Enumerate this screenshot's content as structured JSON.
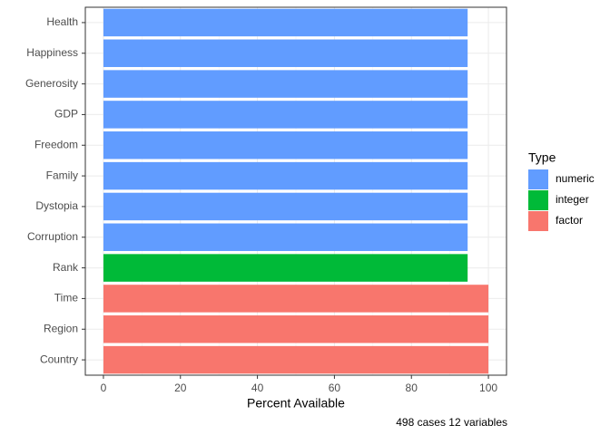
{
  "chart_data": {
    "type": "bar",
    "orientation": "horizontal",
    "categories": [
      "Health",
      "Happiness",
      "Generosity",
      "GDP",
      "Freedom",
      "Family",
      "Dystopia",
      "Corruption",
      "Rank",
      "Time",
      "Region",
      "Country"
    ],
    "series": [
      {
        "name": "numeric",
        "color": "#619cff",
        "values": [
          94.6,
          94.6,
          94.6,
          94.6,
          94.6,
          94.6,
          94.6,
          94.6,
          null,
          null,
          null,
          null
        ]
      },
      {
        "name": "integer",
        "color": "#00ba38",
        "values": [
          null,
          null,
          null,
          null,
          null,
          null,
          null,
          null,
          94.6,
          null,
          null,
          null
        ]
      },
      {
        "name": "factor",
        "color": "#f8766d",
        "values": [
          null,
          null,
          null,
          null,
          null,
          null,
          null,
          null,
          null,
          100,
          100,
          100
        ]
      }
    ],
    "x_label": "Percent Available",
    "legend_title": "Type",
    "caption": "498 cases 12 variables",
    "xlim": [
      -4.7,
      104.7
    ],
    "xticks": [
      0,
      20,
      40,
      60,
      80,
      100
    ],
    "grid": true,
    "legend_position": "right"
  }
}
